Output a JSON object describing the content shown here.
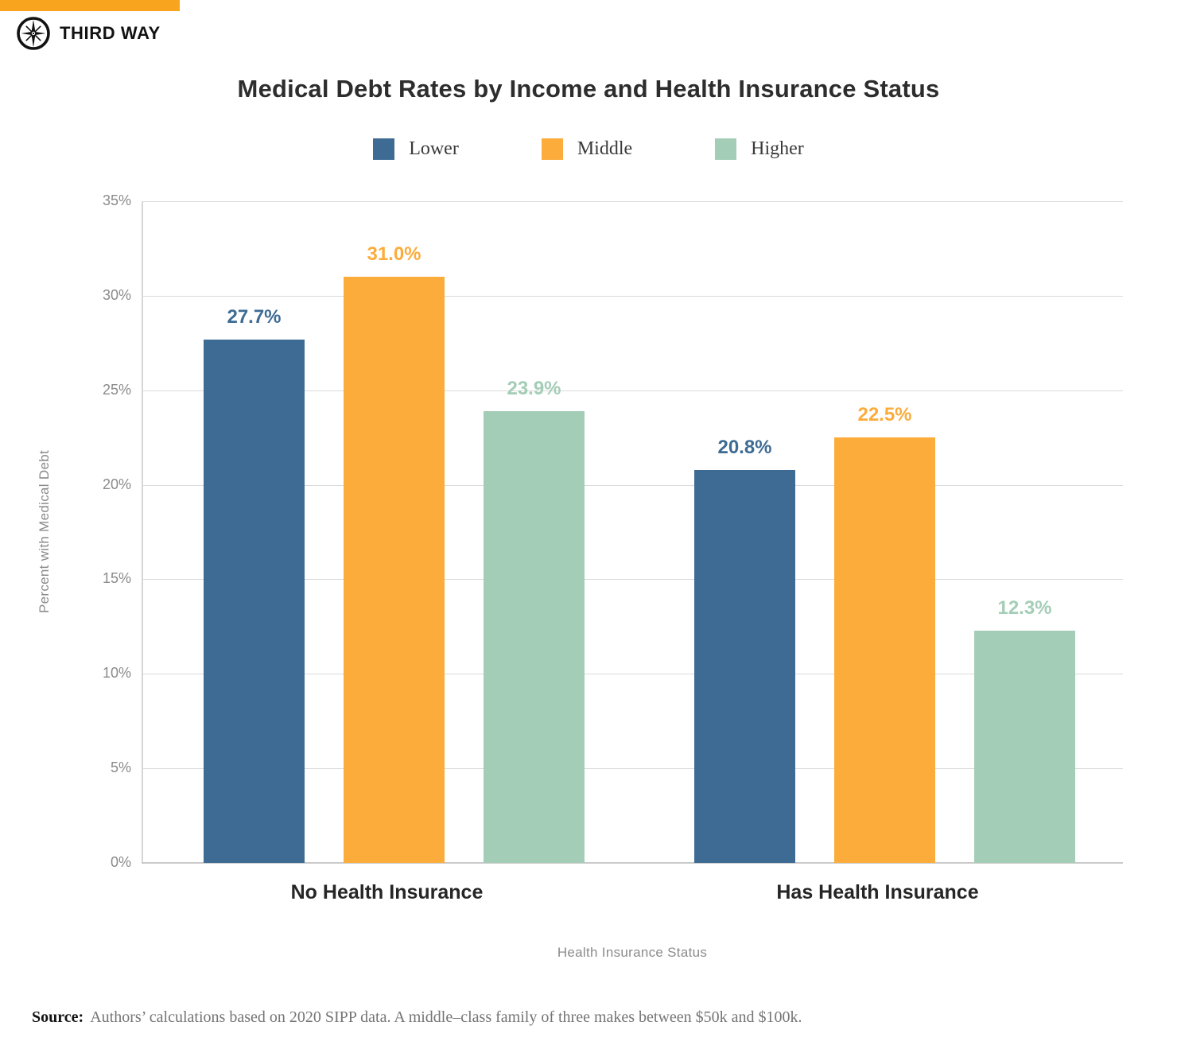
{
  "brand": {
    "name": "THIRD WAY",
    "accent_color": "#F9A41F",
    "logo_color": "#121212"
  },
  "title": "Medical Debt Rates by Income and Health Insurance Status",
  "chart_data": {
    "type": "bar",
    "title": "Medical Debt Rates by Income and Health Insurance Status",
    "categories": [
      "No Health Insurance",
      "Has Health Insurance"
    ],
    "series": [
      {
        "name": "Lower",
        "color": "#3E6B94",
        "values": [
          27.7,
          20.8
        ],
        "labels": [
          "27.7%",
          "20.8%"
        ]
      },
      {
        "name": "Middle",
        "color": "#FCAC3B",
        "values": [
          31.0,
          22.5
        ],
        "labels": [
          "31.0%",
          "22.5%"
        ]
      },
      {
        "name": "Higher",
        "color": "#A4CDB7",
        "values": [
          23.9,
          12.3
        ],
        "labels": [
          "23.9%",
          "12.3%"
        ]
      }
    ],
    "xlabel": "Health Insurance Status",
    "ylabel": "Percent with Medical Debt",
    "ylim": [
      0,
      35
    ],
    "yticks": [
      "0%",
      "5%",
      "10%",
      "15%",
      "20%",
      "25%",
      "30%",
      "35%"
    ],
    "grid": true,
    "legend_position": "top"
  },
  "source": {
    "label": "Source:",
    "text": "Authors’ calculations based on 2020 SIPP data. A middle–class family of three makes between $50k and $100k."
  }
}
